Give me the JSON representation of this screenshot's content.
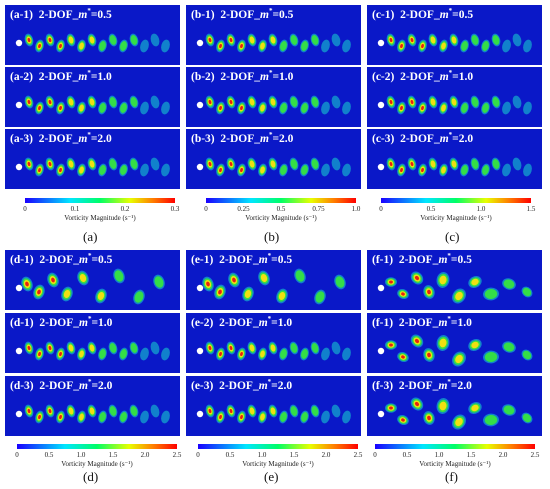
{
  "groups": [
    {
      "id": "a",
      "caption": "(a)",
      "panels": [
        {
          "label": "(a-1)",
          "prefix": "2-DOF_",
          "mvar": "m",
          "msup": "*",
          "value": "=0.5",
          "pattern": "twoS"
        },
        {
          "label": "(a-2)",
          "prefix": "2-DOF_",
          "mvar": "m",
          "msup": "*",
          "value": "=1.0",
          "pattern": "twoS"
        },
        {
          "label": "(a-3)",
          "prefix": "2-DOF_",
          "mvar": "m",
          "msup": "*",
          "value": "=2.0",
          "pattern": "twoS"
        }
      ],
      "colorbar": {
        "ticks": [
          "0",
          "0.1",
          "0.2",
          "0.3"
        ],
        "title": "Vorticity Magnitude (s⁻¹)"
      }
    },
    {
      "id": "b",
      "caption": "(b)",
      "panels": [
        {
          "label": "(b-1)",
          "prefix": "2-DOF_",
          "mvar": "m",
          "msup": "*",
          "value": "=0.5",
          "pattern": "twoS"
        },
        {
          "label": "(b-2)",
          "prefix": "2-DOF_",
          "mvar": "m",
          "msup": "*",
          "value": "=1.0",
          "pattern": "twoS"
        },
        {
          "label": "(b-3)",
          "prefix": "2-DOF_",
          "mvar": "m",
          "msup": "*",
          "value": "=2.0",
          "pattern": "twoS"
        }
      ],
      "colorbar": {
        "ticks": [
          "0",
          "0.25",
          "0.5",
          "0.75",
          "1.0"
        ],
        "title": "Vorticity Magnitude (s⁻¹)"
      }
    },
    {
      "id": "c",
      "caption": "(c)",
      "panels": [
        {
          "label": "(c-1)",
          "prefix": "2-DOF_",
          "mvar": "m",
          "msup": "*",
          "value": "=0.5",
          "pattern": "twoS"
        },
        {
          "label": "(c-2)",
          "prefix": "2-DOF_",
          "mvar": "m",
          "msup": "*",
          "value": "=1.0",
          "pattern": "twoS"
        },
        {
          "label": "(c-3)",
          "prefix": "2-DOF_",
          "mvar": "m",
          "msup": "*",
          "value": "=2.0",
          "pattern": "twoS"
        }
      ],
      "colorbar": {
        "ticks": [
          "0",
          "0.5",
          "1.0",
          "1.5"
        ],
        "title": "Vorticity Magnitude (s⁻¹)"
      }
    },
    {
      "id": "d",
      "caption": "(d)",
      "panels": [
        {
          "label": "(d-1)",
          "prefix": "2-DOF_",
          "mvar": "m",
          "msup": "*",
          "value": "=0.5",
          "pattern": "wide"
        },
        {
          "label": "(d-1)",
          "prefix": "2-DOF_",
          "mvar": "m",
          "msup": "*",
          "value": "=1.0",
          "pattern": "twoS"
        },
        {
          "label": "(d-3)",
          "prefix": "2-DOF_",
          "mvar": "m",
          "msup": "*",
          "value": "=2.0",
          "pattern": "twoS"
        }
      ],
      "colorbar": {
        "ticks": [
          "0",
          "0.5",
          "1.0",
          "1.5",
          "2.0",
          "2.5"
        ],
        "title": "Vorticity Magnitude (s⁻¹)"
      }
    },
    {
      "id": "e",
      "caption": "(e)",
      "panels": [
        {
          "label": "(e-1)",
          "prefix": "2-DOF_",
          "mvar": "m",
          "msup": "*",
          "value": "=0.5",
          "pattern": "wide"
        },
        {
          "label": "(e-2)",
          "prefix": "2-DOF_",
          "mvar": "m",
          "msup": "*",
          "value": "=1.0",
          "pattern": "twoS"
        },
        {
          "label": "(e-3)",
          "prefix": "2-DOF_",
          "mvar": "m",
          "msup": "*",
          "value": "=2.0",
          "pattern": "twoS"
        }
      ],
      "colorbar": {
        "ticks": [
          "0",
          "0.5",
          "1.0",
          "1.5",
          "2.0",
          "2.5"
        ],
        "title": "Vorticity Magnitude (s⁻¹)"
      }
    },
    {
      "id": "f",
      "caption": "(f)",
      "panels": [
        {
          "label": "(f-1)",
          "prefix": "2-DOF_",
          "mvar": "m",
          "msup": "*",
          "value": "=0.5",
          "pattern": "chaotic"
        },
        {
          "label": "(f-1)",
          "prefix": "2-DOF_",
          "mvar": "m",
          "msup": "*",
          "value": "=1.0",
          "pattern": "chaotic"
        },
        {
          "label": "(f-3)",
          "prefix": "2-DOF_",
          "mvar": "m",
          "msup": "*",
          "value": "=2.0",
          "pattern": "chaotic"
        }
      ],
      "colorbar": {
        "ticks": [
          "0",
          "0.5",
          "1.0",
          "1.5",
          "2.0",
          "2.5"
        ],
        "title": "Vorticity Magnitude (s⁻¹)"
      }
    }
  ],
  "colors": {
    "background": "#0a18c8",
    "vortex_outer": "#18d8d0",
    "vortex_mid": "#38e838",
    "vortex_inner": "#f0e010",
    "vortex_core": "#e82010",
    "cylinder": "#ffffff"
  }
}
